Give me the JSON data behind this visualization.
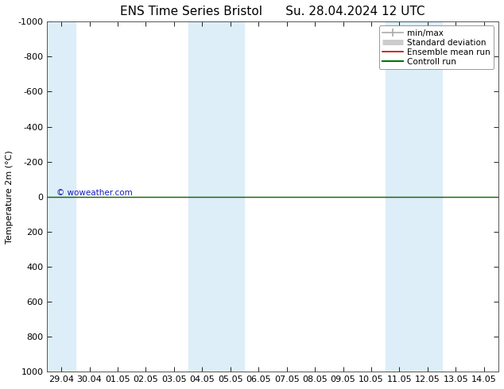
{
  "title": "ENS Time Series Bristol      Su. 28.04.2024 12 UTC",
  "ylabel": "Temperature 2m (°C)",
  "ylim_bottom": 1000,
  "ylim_top": -1000,
  "yticks": [
    -1000,
    -800,
    -600,
    -400,
    -200,
    0,
    200,
    400,
    600,
    800,
    1000
  ],
  "xtick_labels": [
    "29.04",
    "30.04",
    "01.05",
    "02.05",
    "03.05",
    "04.05",
    "05.05",
    "06.05",
    "07.05",
    "08.05",
    "09.05",
    "10.05",
    "11.05",
    "12.05",
    "13.05",
    "14.05"
  ],
  "xtick_positions": [
    0,
    1,
    2,
    3,
    4,
    5,
    6,
    7,
    8,
    9,
    10,
    11,
    12,
    13,
    14,
    15
  ],
  "bg_color": "#ffffff",
  "plot_bg_color": "#ffffff",
  "shaded_bands": [
    {
      "xstart": -0.5,
      "xend": 0.5
    },
    {
      "xstart": 4.5,
      "xend": 6.5
    },
    {
      "xstart": 11.5,
      "xend": 13.5
    }
  ],
  "band_color": "#ddeef8",
  "green_line_y": 0,
  "red_line_y": 0,
  "green_line_color": "#007700",
  "red_line_color": "#cc0000",
  "watermark": "© woweather.com",
  "watermark_color": "#0000bb",
  "legend_items": [
    {
      "label": "min/max",
      "color": "#aaaaaa",
      "lw": 1.2
    },
    {
      "label": "Standard deviation",
      "color": "#cccccc",
      "lw": 5
    },
    {
      "label": "Ensemble mean run",
      "color": "#cc0000",
      "lw": 1.2
    },
    {
      "label": "Controll run",
      "color": "#007700",
      "lw": 1.5
    }
  ],
  "title_fontsize": 11,
  "ylabel_fontsize": 8,
  "tick_fontsize": 8
}
